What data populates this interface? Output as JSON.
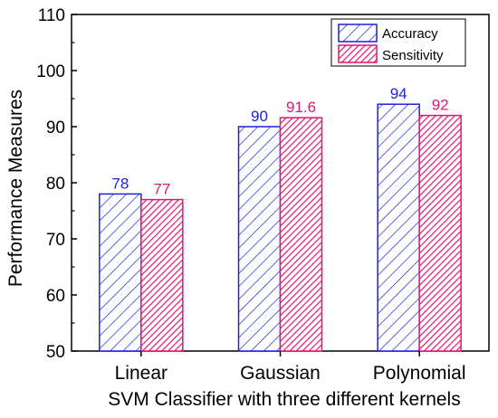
{
  "colors": {
    "accuracy": "#1f1fe0",
    "sensitivity": "#e0186f",
    "axis": "#000000"
  },
  "chart_data": {
    "type": "bar",
    "title": "",
    "xlabel": "SVM Classifier with three different kernels",
    "ylabel": "Performance Measures",
    "categories": [
      "Linear",
      "Gaussian",
      "Polynomial"
    ],
    "series": [
      {
        "name": "Accuracy",
        "values": [
          78,
          90,
          94
        ],
        "labels": [
          "78",
          "90",
          "94"
        ],
        "color": "#1f1fe0",
        "pattern": "diagonal-hatch"
      },
      {
        "name": "Sensitivity",
        "values": [
          77,
          91.6,
          92
        ],
        "labels": [
          "77",
          "91.6",
          "92"
        ],
        "color": "#e0186f",
        "pattern": "dense-diagonal-hatch"
      }
    ],
    "ylim": [
      50,
      110
    ],
    "yticks": [
      50,
      60,
      70,
      80,
      90,
      100,
      110
    ],
    "legend": "top-right",
    "grid": false
  }
}
